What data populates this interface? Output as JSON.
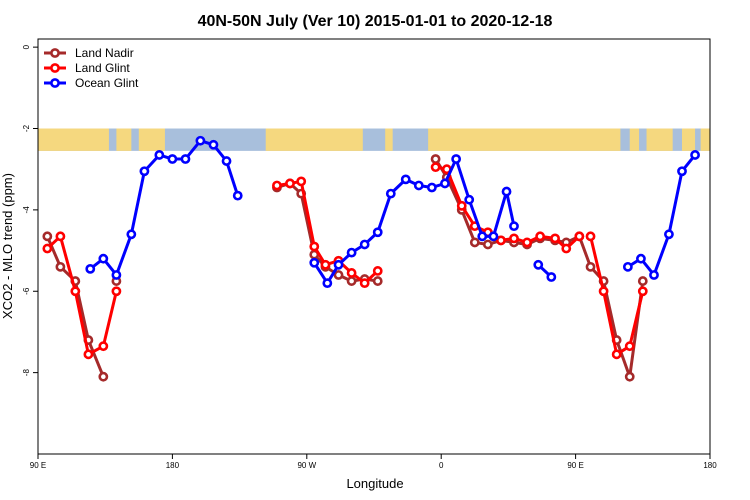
{
  "chart_data": {
    "type": "line",
    "title": "40N-50N July (Ver 10)   2015-01-01 to 2020-12-18",
    "xlabel": "Longitude",
    "ylabel": "XCO2 - MLO trend (ppm)",
    "xlim": [
      -90,
      270
    ],
    "ylim": [
      -10,
      0.2
    ],
    "x_ticks": [
      {
        "value": -90,
        "label": "90 E"
      },
      {
        "value": -18,
        "label": "180"
      },
      {
        "value": 54,
        "label": "90 W"
      },
      {
        "value": 126,
        "label": "0"
      },
      {
        "value": 198,
        "label": "90 E"
      },
      {
        "value": 270,
        "label": "180"
      }
    ],
    "y_ticks": [
      {
        "value": 0,
        "label": "0"
      },
      {
        "value": -2,
        "label": "-2"
      },
      {
        "value": -4,
        "label": "-4"
      },
      {
        "value": -6,
        "label": "-6"
      },
      {
        "value": -8,
        "label": "-8"
      }
    ],
    "map_band": {
      "y_top": -2.0,
      "y_bottom": -2.55,
      "ocean_color": "#a8bfdc",
      "land_color": "#f5d87f"
    },
    "legend": {
      "position": "top-left"
    },
    "series": [
      {
        "name": "Land Nadir",
        "color": "#a52a2a",
        "segments": [
          [
            [
              -85,
              -4.65
            ],
            [
              -78,
              -5.4
            ],
            [
              -70,
              -5.75
            ],
            [
              -63,
              -7.2
            ],
            [
              -55,
              -8.1
            ]
          ],
          [
            [
              -48,
              -5.75
            ]
          ],
          [
            [
              38,
              -3.45
            ],
            [
              45,
              -3.35
            ],
            [
              51,
              -3.6
            ],
            [
              58,
              -5.1
            ],
            [
              64,
              -5.4
            ],
            [
              71,
              -5.6
            ],
            [
              78,
              -5.75
            ],
            [
              85,
              -5.7
            ],
            [
              92,
              -5.75
            ]
          ],
          [
            [
              123,
              -2.75
            ],
            [
              129,
              -3.2
            ],
            [
              137,
              -4.0
            ],
            [
              144,
              -4.8
            ],
            [
              151,
              -4.85
            ],
            [
              158,
              -4.75
            ],
            [
              165,
              -4.8
            ],
            [
              172,
              -4.85
            ],
            [
              179,
              -4.7
            ],
            [
              187,
              -4.75
            ],
            [
              193,
              -4.8
            ],
            [
              200,
              -4.65
            ],
            [
              206,
              -5.4
            ],
            [
              213,
              -5.75
            ],
            [
              220,
              -7.2
            ],
            [
              227,
              -8.1
            ],
            [
              234,
              -5.75
            ]
          ]
        ]
      },
      {
        "name": "Land Glint",
        "color": "#ff0000",
        "segments": [
          [
            [
              -85,
              -4.95
            ],
            [
              -78,
              -4.65
            ],
            [
              -70,
              -6.0
            ],
            [
              -63,
              -7.55
            ],
            [
              -55,
              -7.35
            ],
            [
              -48,
              -6.0
            ]
          ],
          [
            [
              38,
              -3.4
            ],
            [
              45,
              -3.35
            ],
            [
              51,
              -3.3
            ],
            [
              58,
              -4.9
            ],
            [
              64,
              -5.35
            ],
            [
              71,
              -5.25
            ],
            [
              78,
              -5.55
            ],
            [
              85,
              -5.8
            ],
            [
              92,
              -5.5
            ]
          ],
          [
            [
              123,
              -2.95
            ],
            [
              129,
              -3.0
            ],
            [
              137,
              -3.9
            ],
            [
              144,
              -4.4
            ],
            [
              151,
              -4.55
            ],
            [
              158,
              -4.75
            ],
            [
              165,
              -4.7
            ],
            [
              172,
              -4.8
            ],
            [
              179,
              -4.65
            ],
            [
              187,
              -4.7
            ],
            [
              193,
              -4.95
            ],
            [
              200,
              -4.65
            ]
          ],
          [
            [
              206,
              -4.65
            ],
            [
              213,
              -6.0
            ],
            [
              220,
              -7.55
            ],
            [
              227,
              -7.35
            ],
            [
              234,
              -6.0
            ]
          ]
        ]
      },
      {
        "name": "Ocean Glint",
        "color": "#0000ff",
        "segments": [
          [
            [
              -62,
              -5.45
            ],
            [
              -55,
              -5.2
            ],
            [
              -48,
              -5.6
            ],
            [
              -40,
              -4.6
            ],
            [
              -33,
              -3.05
            ],
            [
              -25,
              -2.65
            ],
            [
              -18,
              -2.75
            ],
            [
              -11,
              -2.75
            ],
            [
              -3,
              -2.3
            ],
            [
              4,
              -2.4
            ],
            [
              11,
              -2.8
            ],
            [
              17,
              -3.65
            ]
          ],
          [
            [
              58,
              -5.3
            ],
            [
              65,
              -5.8
            ],
            [
              71,
              -5.35
            ],
            [
              78,
              -5.05
            ],
            [
              85,
              -4.85
            ],
            [
              92,
              -4.55
            ],
            [
              99,
              -3.6
            ],
            [
              107,
              -3.25
            ],
            [
              114,
              -3.4
            ],
            [
              121,
              -3.45
            ],
            [
              128,
              -3.35
            ],
            [
              134,
              -2.75
            ],
            [
              141,
              -3.75
            ],
            [
              148,
              -4.65
            ],
            [
              154,
              -4.65
            ],
            [
              161,
              -3.55
            ],
            [
              165,
              -4.4
            ]
          ],
          [
            [
              178,
              -5.35
            ],
            [
              185,
              -5.65
            ]
          ],
          [
            [
              226,
              -5.4
            ],
            [
              233,
              -5.2
            ],
            [
              240,
              -5.6
            ],
            [
              248,
              -4.6
            ],
            [
              255,
              -3.05
            ],
            [
              262,
              -2.65
            ]
          ]
        ]
      }
    ]
  }
}
